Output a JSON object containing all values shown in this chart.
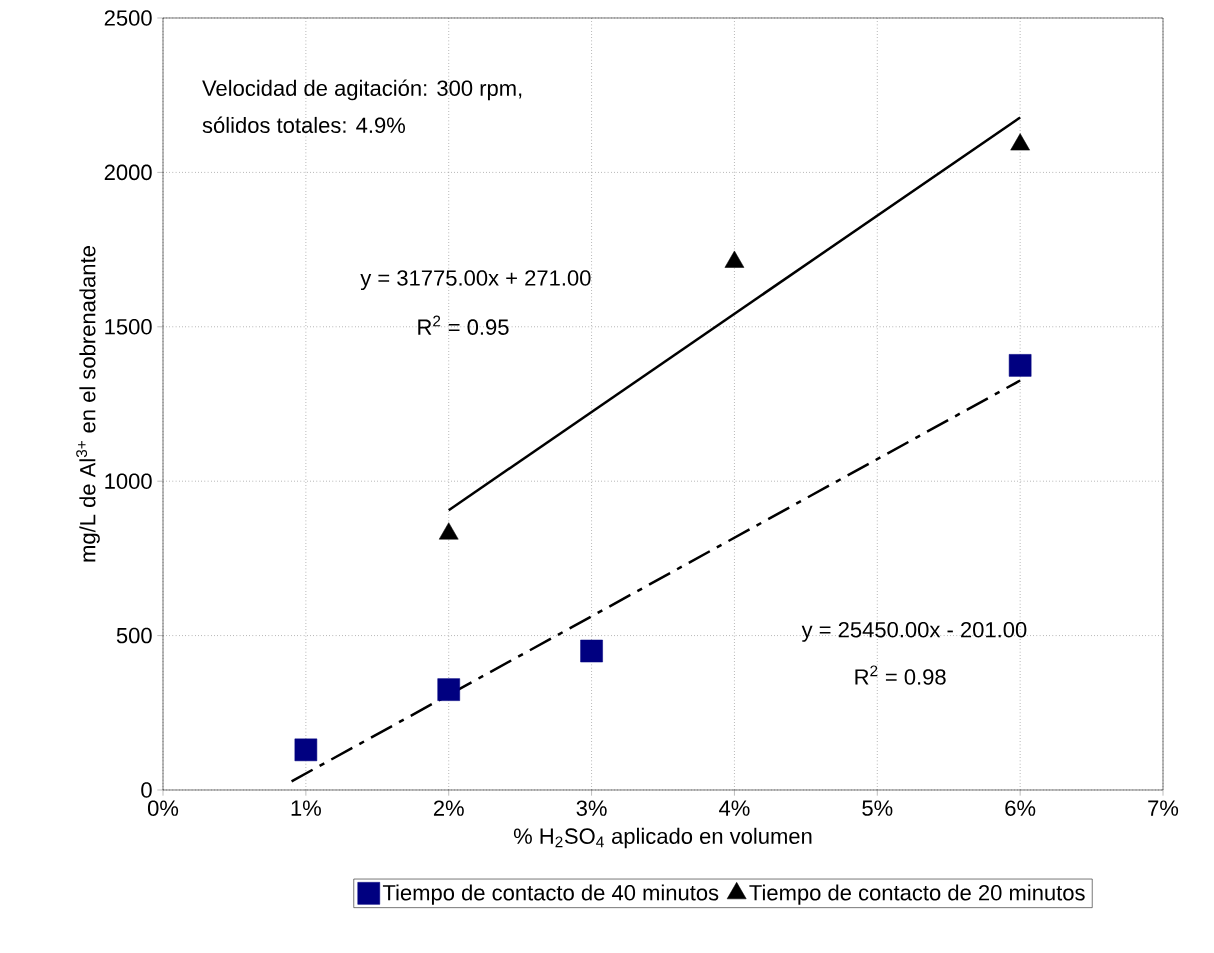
{
  "chart_data": {
    "type": "scatter",
    "xlabel": "% H$_{2}$SO$_{4}$ aplicado en volumen",
    "ylabel": "mg/L de Al$^{3+}$ en el sobrenadante",
    "xlim": [
      0,
      0.07
    ],
    "ylim": [
      0,
      2500
    ],
    "xticks": [
      {
        "value": 0,
        "label": "0%"
      },
      {
        "value": 0.01,
        "label": "1%"
      },
      {
        "value": 0.02,
        "label": "2%"
      },
      {
        "value": 0.03,
        "label": "3%"
      },
      {
        "value": 0.04,
        "label": "4%"
      },
      {
        "value": 0.05,
        "label": "5%"
      },
      {
        "value": 0.06,
        "label": "6%"
      },
      {
        "value": 0.07,
        "label": "7%"
      }
    ],
    "yticks": [
      0,
      500,
      1000,
      1500,
      2000,
      2500
    ],
    "grid": true,
    "legend": "bottom",
    "series": [
      {
        "name": "Tiempo de contacto de 40 minutos",
        "marker": "square",
        "color": "#000080",
        "x": [
          0.01,
          0.02,
          0.03,
          0.06
        ],
        "values": [
          130,
          325,
          450,
          1375
        ]
      },
      {
        "name": "Tiempo de contacto de 20 minutos",
        "marker": "triangle",
        "color": "#000000",
        "x": [
          0.02,
          0.04,
          0.06
        ],
        "values": [
          830,
          1710,
          2090
        ]
      },
      {
        "type": "line",
        "line_style": "solid",
        "color": "#000000",
        "x": [
          0.02,
          0.06
        ],
        "values": [
          906,
          2178
        ]
      },
      {
        "type": "line",
        "line_style": "dashed",
        "color": "#000000",
        "x": [
          0.009,
          0.06
        ],
        "values": [
          28,
          1326
        ]
      }
    ],
    "annotations": [
      "Velocidad de agitación: 300 rpm,",
      "sólidos totales: 4.9%",
      "y = 31775.00x + 271.00",
      "R$^{2}$ = 0.95",
      "y = 25450.00x - 201.00",
      "R$^{2}$ = 0.98"
    ]
  }
}
